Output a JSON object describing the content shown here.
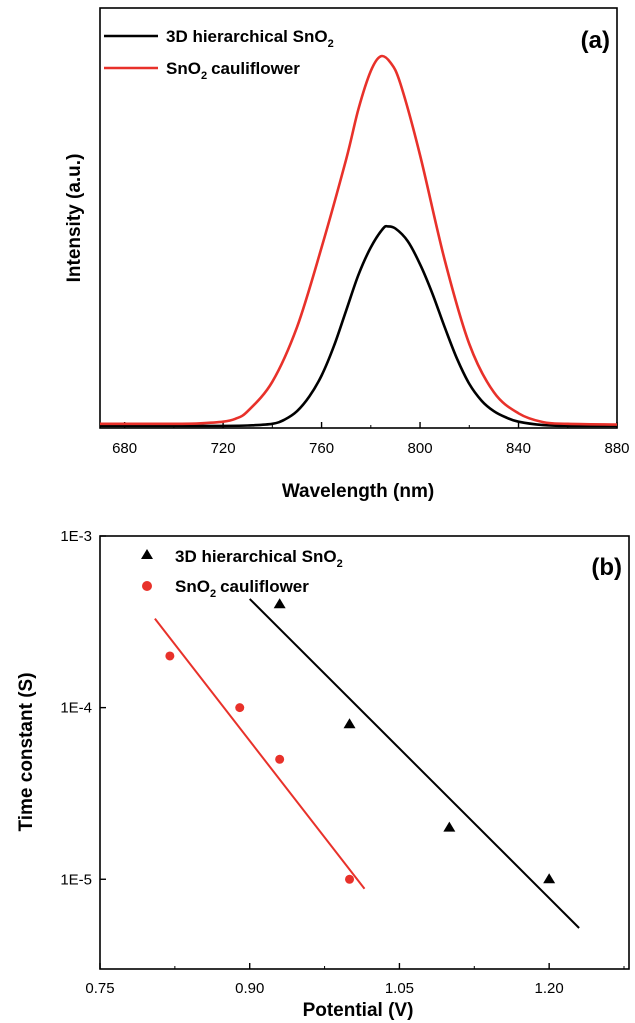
{
  "chart_data": [
    {
      "type": "line",
      "panel_label": "(a)",
      "xlabel": "Wavelength (nm)",
      "ylabel": "Intensity (a.u.)",
      "xlim": [
        670,
        880
      ],
      "xticks": [
        "680",
        "720",
        "760",
        "800",
        "840",
        "880"
      ],
      "y_tick_labels": "none",
      "legend_position": "top-left",
      "series": [
        {
          "name": "3D hierarchical SnO",
          "name_subscript": "2",
          "color": "#000000",
          "x": [
            670,
            700,
            720,
            730,
            740,
            745,
            750,
            755,
            760,
            765,
            770,
            775,
            780,
            785,
            787,
            790,
            795,
            800,
            805,
            810,
            815,
            820,
            825,
            830,
            835,
            840,
            850,
            860,
            880
          ],
          "y": [
            0.005,
            0.005,
            0.005,
            0.006,
            0.01,
            0.02,
            0.04,
            0.075,
            0.125,
            0.195,
            0.28,
            0.365,
            0.43,
            0.475,
            0.48,
            0.475,
            0.445,
            0.39,
            0.32,
            0.24,
            0.165,
            0.105,
            0.065,
            0.04,
            0.025,
            0.015,
            0.007,
            0.005,
            0.005
          ]
        },
        {
          "name": "cauliflower",
          "name_prefix": "SnO",
          "name_subscript": "2",
          "color": "#e8312a",
          "x": [
            670,
            700,
            710,
            720,
            725,
            730,
            740,
            750,
            760,
            770,
            775,
            780,
            784,
            788,
            792,
            800,
            810,
            820,
            830,
            840,
            850,
            860,
            880
          ],
          "y": [
            0.01,
            0.01,
            0.011,
            0.015,
            0.022,
            0.04,
            0.11,
            0.24,
            0.43,
            0.64,
            0.76,
            0.85,
            0.885,
            0.87,
            0.82,
            0.65,
            0.4,
            0.2,
            0.085,
            0.035,
            0.014,
            0.01,
            0.008
          ]
        }
      ]
    },
    {
      "type": "scatter",
      "panel_label": "(b)",
      "xlabel": "Potential (V)",
      "ylabel": "Time constant (S)",
      "xlim": [
        0.75,
        1.28
      ],
      "xticks": [
        "0.75",
        "0.90",
        "1.05",
        "1.20"
      ],
      "y_scale": "log",
      "ylim": [
        3e-06,
        0.001
      ],
      "yticks": [
        "1E-5",
        "1E-4",
        "1E-3"
      ],
      "legend_position": "top-left",
      "series": [
        {
          "name": "3D hierarchical SnO",
          "name_subscript": "2",
          "marker": "triangle",
          "color": "#000000",
          "x": [
            0.93,
            1.0,
            1.1,
            1.2
          ],
          "y": [
            0.0004,
            8e-05,
            2e-05,
            1e-05
          ],
          "fit": {
            "x": [
              0.9,
              1.23
            ],
            "y": [
              0.00043,
              5.2e-06
            ]
          }
        },
        {
          "name": "cauliflower",
          "name_prefix": "SnO",
          "name_subscript": "2",
          "marker": "circle",
          "color": "#e8312a",
          "x": [
            0.82,
            0.89,
            0.93,
            1.0
          ],
          "y": [
            0.0002,
            0.0001,
            5e-05,
            1e-05
          ],
          "fit": {
            "x": [
              0.805,
              1.015
            ],
            "y": [
              0.00033,
              8.8e-06
            ]
          }
        }
      ]
    }
  ]
}
